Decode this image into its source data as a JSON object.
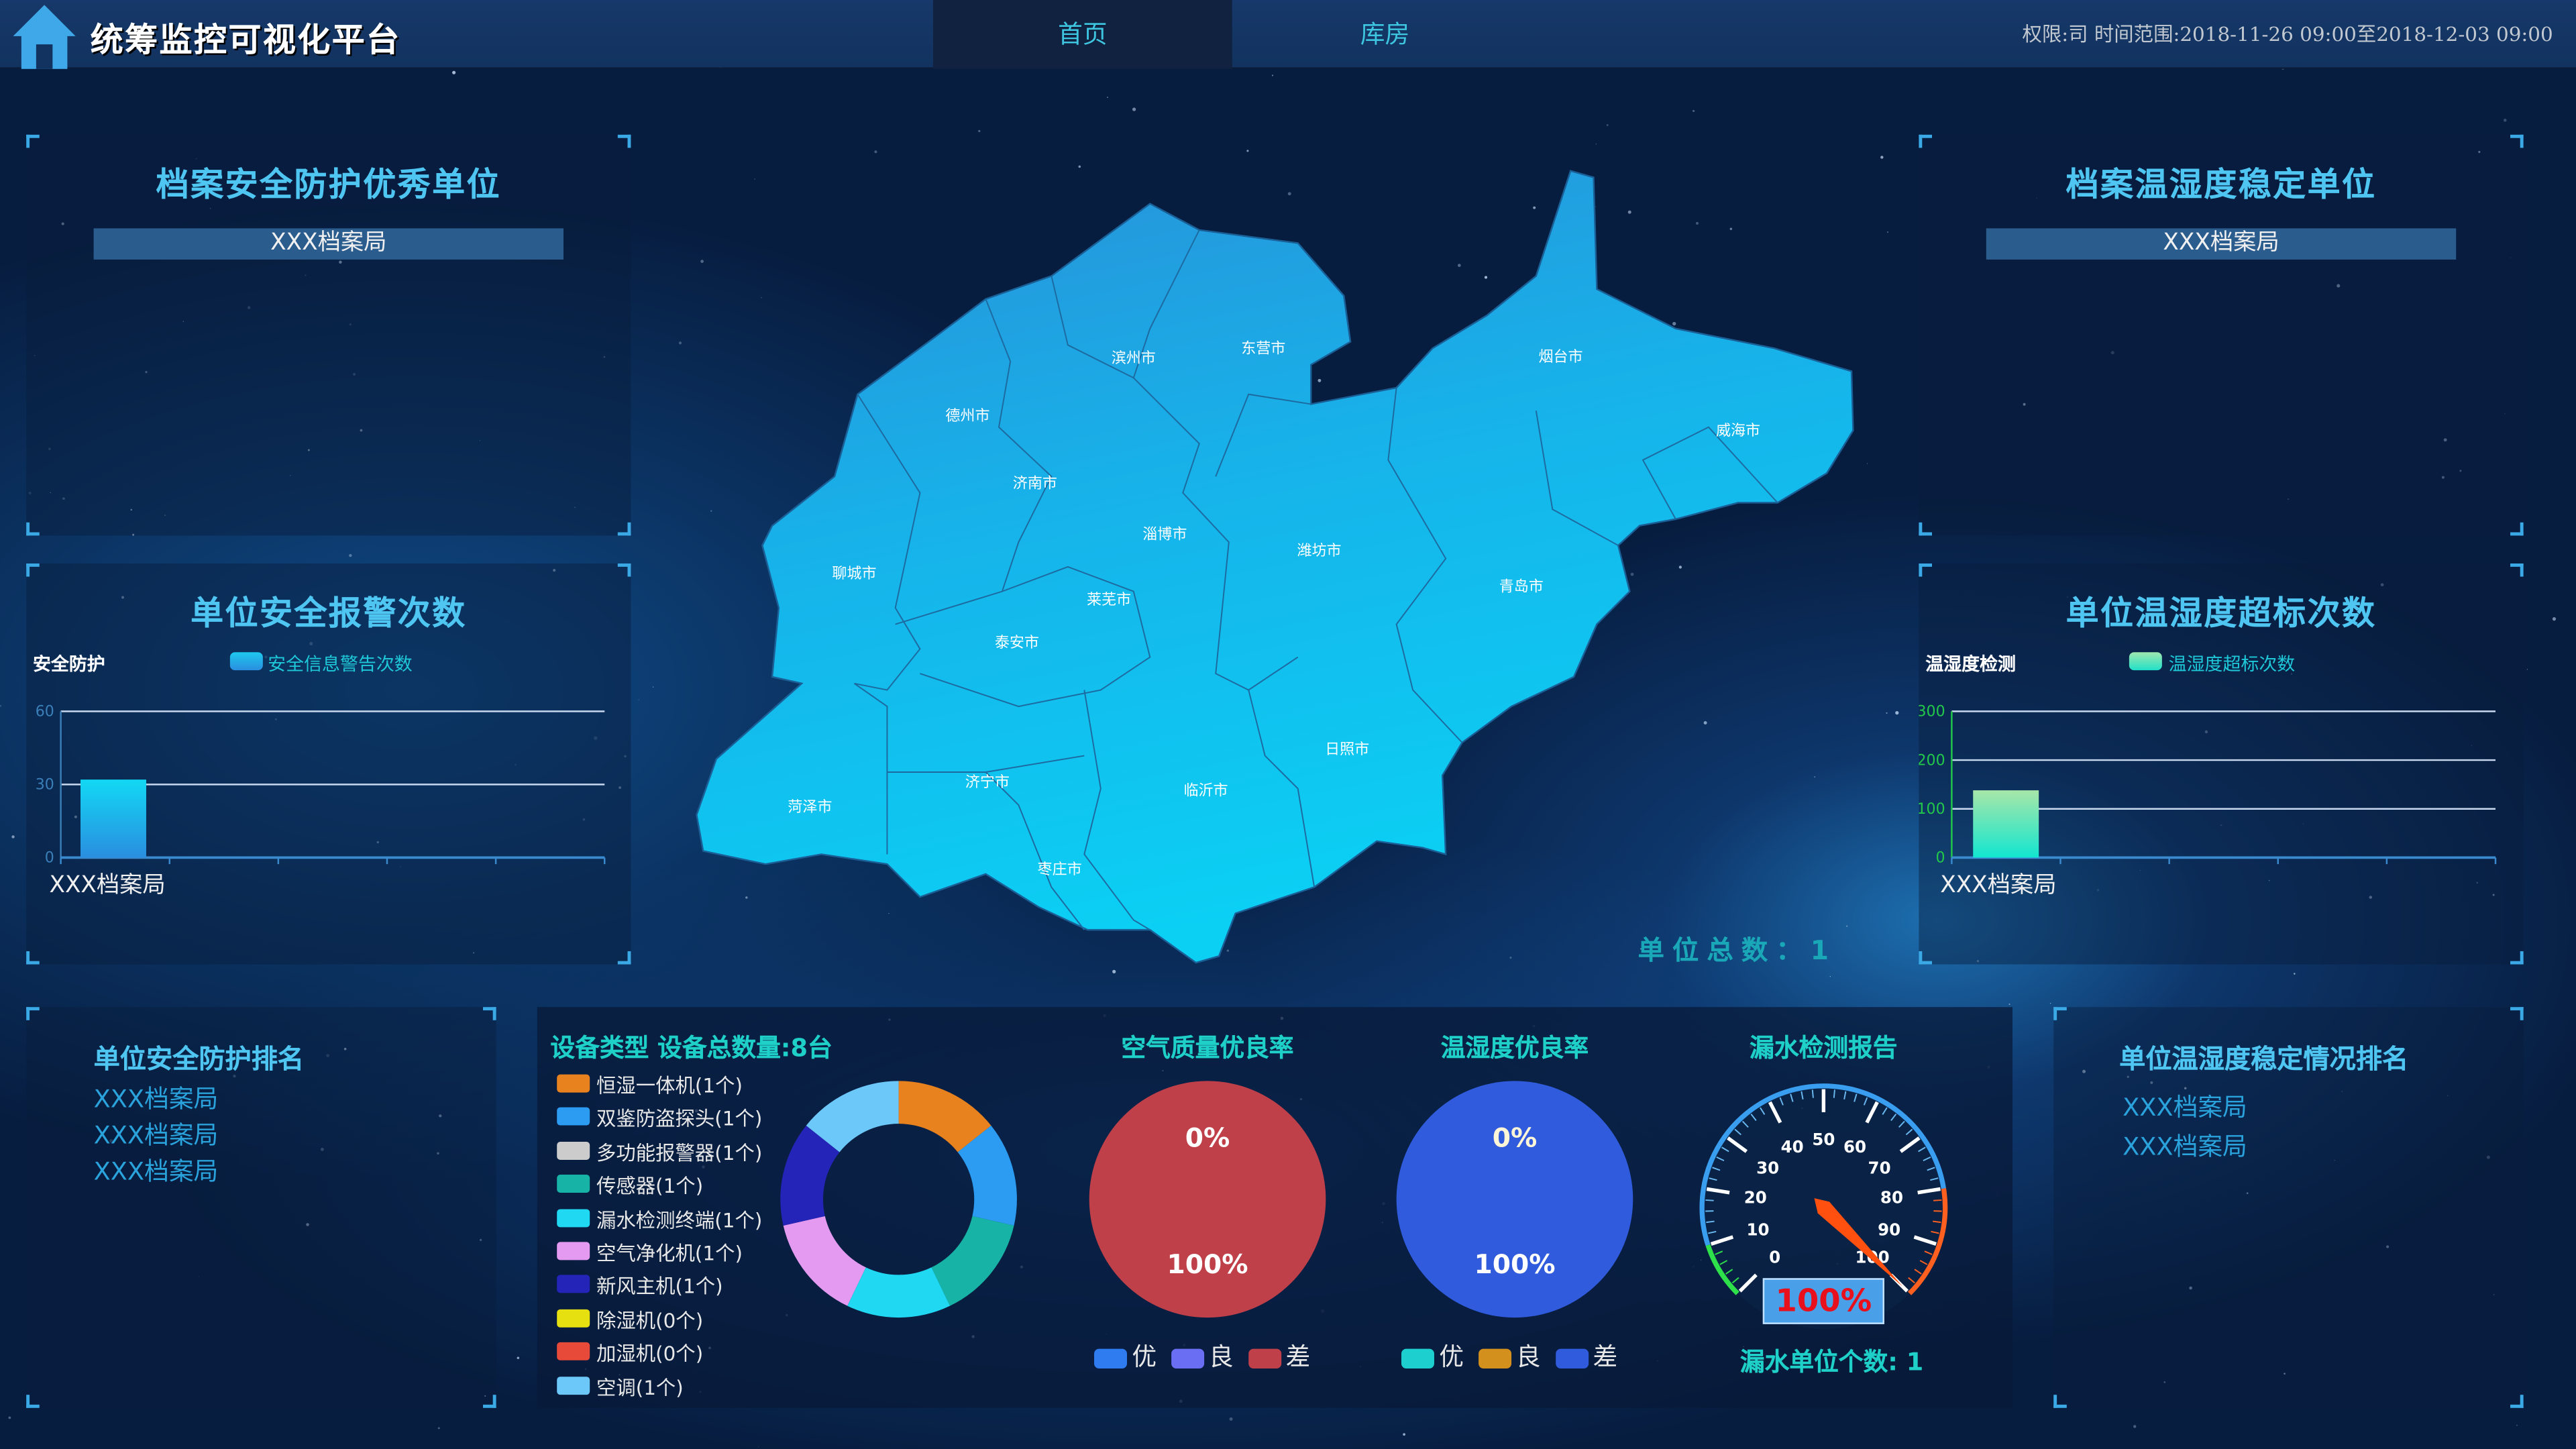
{
  "header": {
    "title": "统筹监控可视化平台",
    "tabs": [
      {
        "label": "首页",
        "active": true
      },
      {
        "label": "库房",
        "active": false
      }
    ],
    "scope_text": "权限:司 时间范围:2018-11-26 09:00至2018-12-03 09:00"
  },
  "top_left": {
    "title": "档案安全防护优秀单位",
    "units": [
      "XXX档案局"
    ]
  },
  "top_right": {
    "title": "档案温湿度稳定单位",
    "units": [
      "XXX档案局"
    ]
  },
  "mid_left": {
    "title": "单位安全报警次数",
    "axis_title": "安全防护",
    "legend": "安全信息警告次数"
  },
  "mid_right": {
    "title": "单位温湿度超标次数",
    "axis_title": "温湿度检测",
    "legend": "温湿度超标次数"
  },
  "map": {
    "cities": [
      "滨州市",
      "东营市",
      "烟台市",
      "威海市",
      "德州市",
      "济南市",
      "淄博市",
      "潍坊市",
      "青岛市",
      "聊城市",
      "莱芜市",
      "泰安市",
      "日照市",
      "济宁市",
      "临沂市",
      "菏泽市",
      "枣庄市"
    ],
    "total_label": "单位总数：1"
  },
  "bottom_left": {
    "title": "单位安全防护排名",
    "items": [
      "XXX档案局",
      "XXX档案局",
      "XXX档案局"
    ]
  },
  "bottom_right": {
    "title": "单位温湿度稳定情况排名",
    "items": [
      "XXX档案局",
      "XXX档案局"
    ]
  },
  "devices": {
    "title": "设备类型 设备总数量:8台",
    "items": [
      {
        "label": "恒湿一体机(1个)",
        "color": "#e8821e",
        "value": 1,
        "selected": true
      },
      {
        "label": "双鉴防盗探头(1个)",
        "color": "#2b9cf2",
        "value": 1,
        "selected": true
      },
      {
        "label": "多功能报警器(1个)",
        "color": "#cccccc",
        "value": 1,
        "selected": false
      },
      {
        "label": "传感器(1个)",
        "color": "#17b3a6",
        "value": 1,
        "selected": true
      },
      {
        "label": "漏水检测终端(1个)",
        "color": "#20d8f2",
        "value": 1,
        "selected": true
      },
      {
        "label": "空气净化机(1个)",
        "color": "#e59af2",
        "value": 1,
        "selected": true
      },
      {
        "label": "新风主机(1个)",
        "color": "#2424b8",
        "value": 1,
        "selected": true
      },
      {
        "label": "除湿机(0个)",
        "color": "#e6e010",
        "value": 0,
        "selected": true
      },
      {
        "label": "加湿机(0个)",
        "color": "#e84a3a",
        "value": 0,
        "selected": true
      },
      {
        "label": "空调(1个)",
        "color": "#6cc8f8",
        "value": 1,
        "selected": true
      }
    ]
  },
  "air_quality": {
    "title": "空气质量优良率",
    "top_label": "0%",
    "bottom_label": "100%",
    "legend": [
      {
        "label": "优",
        "color": "#2e7cf0"
      },
      {
        "label": "良",
        "color": "#6a6ef2"
      },
      {
        "label": "差",
        "color": "#c0404a"
      }
    ],
    "values": [
      0,
      0,
      100
    ]
  },
  "temp_humidity": {
    "title": "温湿度优良率",
    "top_label": "0%",
    "bottom_label": "100%",
    "legend": [
      {
        "label": "优",
        "color": "#1ecfcf"
      },
      {
        "label": "良",
        "color": "#d4901c"
      },
      {
        "label": "差",
        "color": "#2f5bdc"
      }
    ],
    "values": [
      0,
      0,
      100
    ]
  },
  "leak": {
    "title": "漏水检测报告",
    "value_label": "100%",
    "value": 100,
    "count_label": "漏水单位个数: 1",
    "ticks": [
      "0",
      "10",
      "20",
      "30",
      "40",
      "50",
      "60",
      "70",
      "80",
      "90",
      "100"
    ]
  },
  "chart_data": [
    {
      "type": "bar",
      "title": "单位安全报警次数",
      "ylabel": "安全防护",
      "categories": [
        "XXX档案局"
      ],
      "series": [
        {
          "name": "安全信息警告次数",
          "values": [
            32
          ]
        }
      ],
      "ylim": [
        0,
        60
      ],
      "yticks": [
        "0",
        "30",
        "60"
      ],
      "grid": true,
      "legend": "top",
      "color": "#1ec8ee"
    },
    {
      "type": "bar",
      "title": "单位温湿度超标次数",
      "ylabel": "温湿度检测",
      "categories": [
        "XXX档案局"
      ],
      "series": [
        {
          "name": "温湿度超标次数",
          "values": [
            138
          ]
        }
      ],
      "ylim": [
        0,
        300
      ],
      "yticks": [
        "0",
        "100",
        "200",
        "300"
      ],
      "grid": true,
      "legend": "top",
      "color": "#2ee0c8"
    }
  ]
}
